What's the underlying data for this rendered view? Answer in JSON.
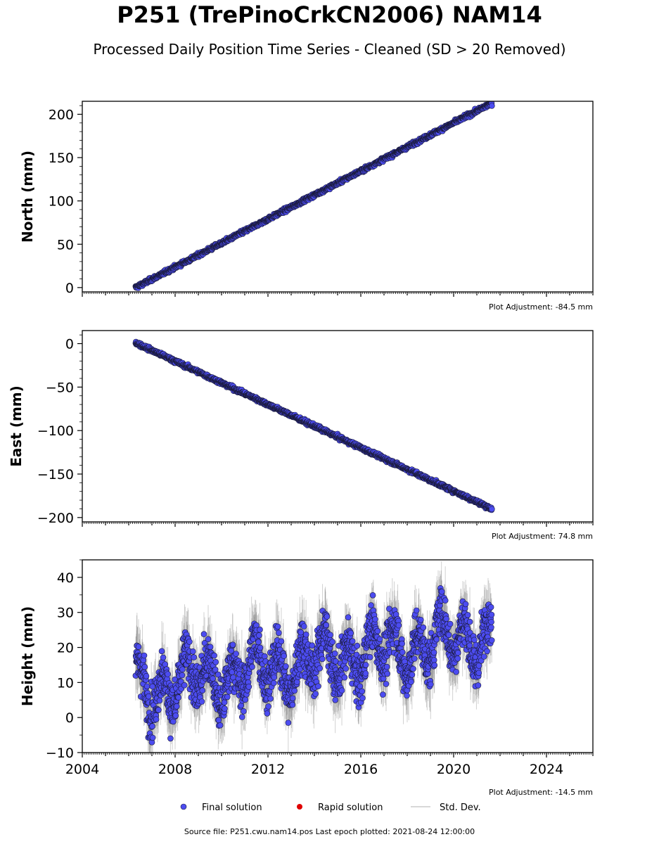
{
  "title": "P251 (TrePinoCrkCN2006) NAM14",
  "subtitle": "Processed Daily Position Time Series - Cleaned (SD > 20 Removed)",
  "footer": "Source file: P251.cwu.nam14.pos  Last epoch plotted: 2021-08-24 12:00:00",
  "legend": [
    {
      "label": "Final solution",
      "color": "#4c4cf0",
      "kind": "dot"
    },
    {
      "label": "Rapid solution",
      "color": "#e00000",
      "kind": "dot"
    },
    {
      "label": "Std. Dev.",
      "color": "#cccccc",
      "kind": "line"
    }
  ],
  "chart_data": [
    {
      "type": "scatter",
      "ylabel": "North (mm)",
      "adjustment": "Plot Adjustment: -84.5 mm",
      "xlim": [
        2004,
        2026
      ],
      "ylim": [
        -5,
        215
      ],
      "yticks": [
        0,
        50,
        100,
        150,
        200
      ],
      "ytick_labels": [
        "0",
        "50",
        "100",
        "150",
        "200"
      ],
      "trend": {
        "start": [
          2006.3,
          0
        ],
        "end": [
          2021.65,
          213
        ]
      },
      "noise": 1.5,
      "series": [
        {
          "x": [
            2006.3,
            2008,
            2010,
            2012,
            2014,
            2016,
            2018,
            2020,
            2021.65
          ],
          "values": [
            0,
            23,
            50,
            77,
            105,
            131,
            158,
            186,
            213
          ]
        }
      ]
    },
    {
      "type": "scatter",
      "ylabel": "East (mm)",
      "adjustment": "Plot Adjustment: 74.8 mm",
      "xlim": [
        2004,
        2026
      ],
      "ylim": [
        -205,
        15
      ],
      "yticks": [
        0,
        -50,
        -100,
        -150,
        -200
      ],
      "ytick_labels": [
        "0",
        "−50",
        "−100",
        "−150",
        "−200"
      ],
      "trend": {
        "start": [
          2006.3,
          1
        ],
        "end": [
          2021.65,
          -190
        ]
      },
      "noise": 1.5,
      "series": [
        {
          "x": [
            2006.3,
            2008,
            2010,
            2012,
            2014,
            2016,
            2018,
            2020,
            2021.65
          ],
          "values": [
            1,
            -20,
            -45,
            -70,
            -94,
            -118,
            -143,
            -168,
            -190
          ]
        }
      ]
    },
    {
      "type": "scatter",
      "ylabel": "Height (mm)",
      "adjustment": "Plot Adjustment: -14.5 mm",
      "xlim": [
        2004,
        2026
      ],
      "ylim": [
        -10,
        45
      ],
      "yticks": [
        -10,
        0,
        10,
        20,
        30,
        40
      ],
      "ytick_labels": [
        "−10",
        "0",
        "10",
        "20",
        "30",
        "40"
      ],
      "xticks": [
        2004,
        2008,
        2012,
        2016,
        2020,
        2024
      ],
      "xtick_labels": [
        "2004",
        "2008",
        "2012",
        "2016",
        "2020",
        "2024"
      ],
      "trend": {
        "start": [
          2006.3,
          8
        ],
        "end": [
          2021.65,
          24
        ]
      },
      "seasonal_amplitude": 6,
      "noise": 5,
      "series": [
        {
          "x": [
            2006.5,
            2008,
            2010,
            2012,
            2014,
            2016,
            2018,
            2020,
            2021.5
          ],
          "values": [
            8,
            11,
            12,
            14,
            20,
            24,
            20,
            22,
            24
          ]
        }
      ]
    }
  ]
}
